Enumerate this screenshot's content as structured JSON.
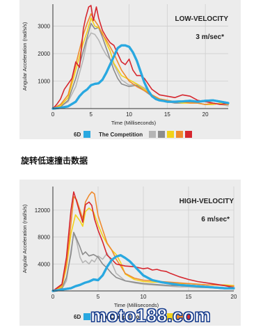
{
  "caption": "旋转低速撞击数据",
  "watermark": "moto188.com",
  "colors": {
    "6D": "#29a8e0",
    "competition": [
      "#b5b5b5",
      "#8c8c8c",
      "#f2d21a",
      "#ef8a2e",
      "#d6262e"
    ]
  },
  "chart_data": [
    {
      "type": "line",
      "title": "LOW-VELOCITY",
      "subtitle": "3 m/sec*",
      "xlabel": "Time (Milliseconds)",
      "ylabel": "Angular Acceleration (rad/s/s)",
      "xlim": [
        0,
        23
      ],
      "ylim": [
        0,
        3800
      ],
      "xticks": [
        0,
        5,
        10,
        15,
        20
      ],
      "yticks": [
        1000,
        2000,
        3000
      ],
      "legend": {
        "placement": "bottom",
        "label_6d": "6D",
        "label_competition": "The Competition"
      },
      "series": [
        {
          "name": "6D",
          "color": "#29a8e0",
          "width": 3.2,
          "x": [
            0,
            1,
            2,
            3,
            3.5,
            4,
            4.5,
            5,
            5.5,
            6,
            6.5,
            7,
            7.5,
            8,
            8.5,
            9,
            9.5,
            10,
            10.5,
            11,
            11.5,
            12,
            12.5,
            13,
            13.5,
            14,
            14.5,
            15,
            16,
            17,
            18,
            19,
            20,
            21,
            22,
            23
          ],
          "y": [
            0,
            30,
            80,
            250,
            450,
            600,
            700,
            850,
            900,
            920,
            1050,
            1300,
            1600,
            1900,
            2200,
            2300,
            2300,
            2250,
            2050,
            1750,
            1350,
            950,
            650,
            450,
            350,
            300,
            280,
            250,
            250,
            260,
            280,
            250,
            280,
            300,
            250,
            200
          ]
        },
        {
          "name": "",
          "color": "#b5b5b5",
          "width": 1.6,
          "x": [
            0,
            1,
            2,
            3,
            4,
            4.5,
            5,
            5.5,
            6,
            6.5,
            7,
            7.5,
            8,
            9,
            10,
            11,
            12,
            13,
            14,
            15,
            16,
            17,
            18,
            19,
            20,
            21,
            22,
            23
          ],
          "y": [
            0,
            80,
            250,
            800,
            1800,
            2500,
            2750,
            2700,
            2500,
            2200,
            1950,
            1800,
            1600,
            1050,
            850,
            900,
            750,
            500,
            350,
            300,
            250,
            250,
            200,
            250,
            300,
            200,
            150,
            100
          ]
        },
        {
          "name": "",
          "color": "#8c8c8c",
          "width": 1.6,
          "x": [
            0,
            1,
            2,
            3,
            4,
            4.5,
            5,
            5.5,
            6,
            6.5,
            7,
            7.5,
            8,
            8.5,
            9,
            10,
            11,
            12,
            13,
            14,
            15,
            16,
            17,
            18,
            19,
            20,
            21,
            22,
            23
          ],
          "y": [
            0,
            60,
            300,
            1100,
            2100,
            2600,
            3100,
            2900,
            2950,
            2600,
            2200,
            1800,
            1400,
            1100,
            900,
            800,
            850,
            650,
            450,
            300,
            250,
            200,
            200,
            250,
            200,
            150,
            150,
            200,
            150
          ]
        },
        {
          "name": "",
          "color": "#f2d21a",
          "width": 1.6,
          "x": [
            0,
            1,
            2,
            3,
            4,
            4.5,
            5,
            5.5,
            6,
            6.5,
            7,
            7.5,
            8,
            9,
            10,
            11,
            12,
            13,
            14,
            15,
            16,
            17,
            18,
            19,
            20,
            21,
            22,
            23
          ],
          "y": [
            0,
            100,
            400,
            1400,
            2400,
            2800,
            3300,
            3000,
            2950,
            2750,
            2400,
            2100,
            1650,
            1200,
            1050,
            900,
            700,
            500,
            350,
            300,
            250,
            200,
            200,
            200,
            150,
            150,
            200,
            150
          ]
        },
        {
          "name": "",
          "color": "#ef8a2e",
          "width": 1.6,
          "x": [
            0,
            1,
            2,
            3,
            4,
            4.5,
            5,
            5.5,
            6,
            6.5,
            7,
            7.5,
            8,
            8.5,
            9,
            10,
            11,
            12,
            13,
            14,
            15,
            16,
            17,
            18,
            19,
            20,
            21,
            22,
            23
          ],
          "y": [
            0,
            150,
            500,
            1600,
            2700,
            3100,
            3450,
            3200,
            3000,
            2700,
            2500,
            2250,
            2000,
            1700,
            1400,
            1000,
            800,
            650,
            500,
            350,
            300,
            250,
            250,
            200,
            200,
            150,
            200,
            150,
            150
          ]
        },
        {
          "name": "",
          "color": "#d6262e",
          "width": 1.6,
          "x": [
            0,
            0.5,
            1,
            1.5,
            2,
            2.5,
            3,
            3.5,
            4,
            4.3,
            4.7,
            5,
            5.3,
            5.7,
            6,
            6.5,
            7,
            7.5,
            8,
            8.5,
            9,
            9.5,
            10,
            10.5,
            11,
            11.5,
            12,
            13,
            14,
            15,
            16,
            17,
            18,
            19,
            20,
            21,
            22,
            23
          ],
          "y": [
            0,
            150,
            350,
            700,
            900,
            1100,
            1700,
            1500,
            2900,
            3300,
            3700,
            3750,
            3200,
            3700,
            3300,
            2850,
            2600,
            2400,
            2300,
            2000,
            1700,
            1600,
            1800,
            1400,
            1200,
            1200,
            1100,
            700,
            500,
            450,
            400,
            500,
            450,
            300,
            250,
            200,
            150,
            200
          ]
        }
      ]
    },
    {
      "type": "line",
      "title": "HIGH-VELOCITY",
      "subtitle": "6 m/sec*",
      "xlabel": "Time (Milliseconds)",
      "ylabel": "Angular Acceleration (rad/s/s)",
      "xlim": [
        0,
        20
      ],
      "ylim": [
        0,
        15500
      ],
      "xticks": [
        0,
        5,
        10,
        15,
        20
      ],
      "yticks": [
        4000,
        8000,
        12000
      ],
      "legend": {
        "placement": "bottom",
        "label_6d": "6D",
        "label_competition": "The Competition"
      },
      "series": [
        {
          "name": "6D",
          "color": "#29a8e0",
          "width": 3.2,
          "x": [
            0,
            1,
            2,
            2.5,
            3,
            3.5,
            4,
            4.5,
            5,
            5.5,
            6,
            6.5,
            7,
            7.5,
            8,
            8.5,
            9,
            9.5,
            10,
            11,
            12,
            13,
            14,
            15,
            16,
            17,
            18,
            19,
            20
          ],
          "y": [
            0,
            200,
            400,
            700,
            900,
            1200,
            1400,
            1700,
            1600,
            2300,
            3600,
            4600,
            5100,
            5300,
            4900,
            4400,
            3700,
            3000,
            2300,
            1600,
            1300,
            1100,
            900,
            800,
            700,
            600,
            500,
            400,
            400
          ]
        },
        {
          "name": "",
          "color": "#b5b5b5",
          "width": 1.6,
          "x": [
            0,
            1,
            1.5,
            2,
            2.3,
            2.6,
            3,
            3.3,
            3.6,
            4,
            4.3,
            4.6,
            5,
            5.5,
            6,
            6.5,
            7,
            8,
            9,
            10,
            11,
            12,
            13,
            14,
            15,
            16,
            17,
            18,
            19,
            20
          ],
          "y": [
            0,
            300,
            1500,
            6000,
            8500,
            7500,
            5000,
            4200,
            4500,
            4000,
            4600,
            4300,
            5200,
            4700,
            5600,
            4200,
            2600,
            1500,
            1200,
            1000,
            900,
            800,
            700,
            600,
            600,
            500,
            500,
            400,
            400,
            300
          ]
        },
        {
          "name": "",
          "color": "#8c8c8c",
          "width": 1.6,
          "x": [
            0,
            1,
            1.5,
            2,
            2.3,
            2.6,
            3,
            3.3,
            3.6,
            4,
            4.5,
            5,
            5.5,
            6,
            6.5,
            7,
            8,
            9,
            10,
            11,
            12,
            13,
            14,
            15,
            16,
            17,
            18,
            19,
            20
          ],
          "y": [
            0,
            400,
            2000,
            5500,
            8700,
            7800,
            6500,
            5400,
            5800,
            5200,
            5400,
            5000,
            4000,
            3400,
            2600,
            2000,
            1500,
            1300,
            1100,
            1000,
            900,
            800,
            800,
            700,
            600,
            500,
            500,
            400,
            300
          ]
        },
        {
          "name": "",
          "color": "#f2d21a",
          "width": 1.6,
          "x": [
            0,
            1,
            1.5,
            2,
            2.5,
            3,
            3.3,
            3.6,
            4,
            4.5,
            5,
            5.5,
            6,
            6.5,
            7,
            7.5,
            8,
            9,
            10,
            11,
            12,
            13,
            14,
            15,
            16,
            17,
            18,
            19,
            20
          ],
          "y": [
            0,
            600,
            3500,
            8500,
            11300,
            10400,
            9600,
            11800,
            12300,
            11700,
            9800,
            8200,
            7000,
            6100,
            5400,
            4200,
            2500,
            1700,
            1400,
            1300,
            1300,
            1200,
            1100,
            1100,
            1000,
            900,
            900,
            900,
            800
          ]
        },
        {
          "name": "",
          "color": "#ef8a2e",
          "width": 1.6,
          "x": [
            0,
            1,
            1.5,
            2,
            2.3,
            2.6,
            3,
            3.3,
            3.6,
            4,
            4.3,
            4.6,
            5,
            5.5,
            6,
            6.5,
            7,
            7.5,
            8,
            9,
            10,
            11,
            12,
            13,
            14,
            15,
            16,
            17,
            18,
            19,
            20
          ],
          "y": [
            0,
            800,
            4000,
            10000,
            14000,
            13600,
            12000,
            10700,
            13200,
            14200,
            14700,
            14400,
            11200,
            9100,
            7100,
            6100,
            4700,
            3700,
            2600,
            1900,
            1600,
            1500,
            1400,
            1300,
            1200,
            1100,
            1000,
            900,
            900,
            800,
            700
          ]
        },
        {
          "name": "",
          "color": "#d6262e",
          "width": 1.6,
          "x": [
            0,
            1,
            1.5,
            2,
            2.3,
            2.6,
            3,
            3.3,
            3.6,
            4,
            4.3,
            4.6,
            5,
            5.5,
            6,
            6.5,
            7,
            8,
            9,
            10,
            10.5,
            11,
            11.5,
            12,
            12.5,
            13,
            14,
            15,
            16,
            17,
            18,
            19,
            20
          ],
          "y": [
            0,
            1000,
            5000,
            12000,
            14700,
            13400,
            11500,
            10200,
            12800,
            13200,
            12700,
            10700,
            9000,
            7300,
            5300,
            4700,
            4000,
            3700,
            3600,
            3300,
            3400,
            3100,
            3200,
            3000,
            2900,
            2600,
            2100,
            1700,
            1400,
            1200,
            1000,
            800,
            500
          ]
        }
      ]
    }
  ]
}
